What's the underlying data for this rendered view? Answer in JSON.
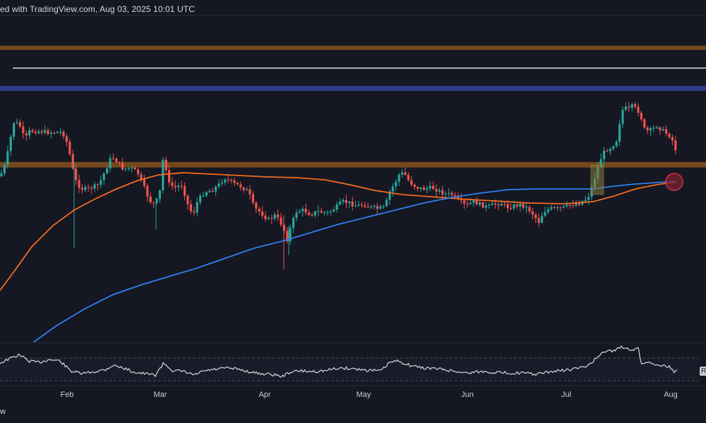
{
  "header": {
    "text": "ed with TradingView.com, Aug 03, 2025 10:01 UTC"
  },
  "footer": {
    "corner_text": "w"
  },
  "rsi_tag": {
    "label": "R"
  },
  "colors": {
    "background": "#151722",
    "up": "#26a69a",
    "down": "#ef5350",
    "ma_orange": "#f26b21",
    "ma_blue": "#2f7ff0",
    "zone_orange": "#7a4a1c",
    "zone_blue": "#2e3c8c",
    "resistance_line": "#f0f0f0",
    "highlight_box": "#8a7a3a",
    "circle_marker": "#e0334a",
    "rsi_line": "#d8dae0"
  },
  "chart_data": {
    "type": "candlestick",
    "x_axis": {
      "tick_labels": [
        "Feb",
        "Mar",
        "Apr",
        "May",
        "Jun",
        "Jul",
        "Aug"
      ]
    },
    "zones": [
      {
        "kind": "supply",
        "color": "#7a4a1c",
        "from": 0.108,
        "to": 0.118
      },
      {
        "kind": "blue-support",
        "color": "#2e3c8c",
        "from": 0.203,
        "to": 0.215
      },
      {
        "kind": "demand",
        "color": "#7a4a1c",
        "from": 0.383,
        "to": 0.396
      }
    ],
    "resistance_line": {
      "level": 0.161
    },
    "moving_averages": [
      {
        "kind": "orange",
        "color": "#f26b21"
      },
      {
        "kind": "blue",
        "color": "#2f7ff0"
      }
    ],
    "rsi_panel": {
      "levels": [
        70,
        30
      ]
    }
  }
}
